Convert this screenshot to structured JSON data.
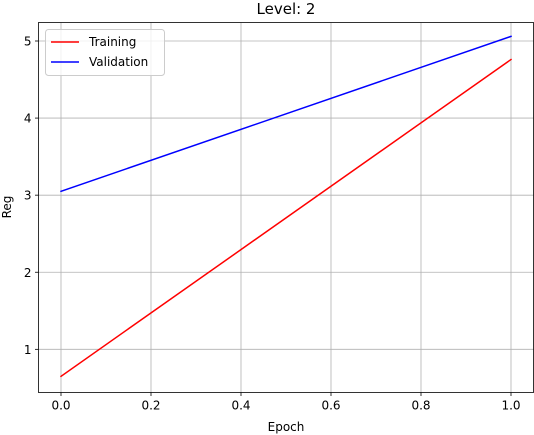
{
  "chart_data": {
    "type": "line",
    "title": "Level: 2",
    "xlabel": "Epoch",
    "ylabel": "Reg",
    "xlim": [
      -0.05,
      1.05
    ],
    "ylim": [
      0.44,
      5.24
    ],
    "xticks": [
      0.0,
      0.2,
      0.4,
      0.6,
      0.8,
      1.0
    ],
    "xtick_labels": [
      "0.0",
      "0.2",
      "0.4",
      "0.6",
      "0.8",
      "1.0"
    ],
    "yticks": [
      1,
      2,
      3,
      4,
      5
    ],
    "ytick_labels": [
      "1",
      "2",
      "3",
      "4",
      "5"
    ],
    "grid": true,
    "legend_position": "top-left",
    "series": [
      {
        "name": "Training",
        "color": "#ff0000",
        "x": [
          0.0,
          1.0
        ],
        "y": [
          0.65,
          4.76
        ]
      },
      {
        "name": "Validation",
        "color": "#0000ff",
        "x": [
          0.0,
          1.0
        ],
        "y": [
          3.05,
          5.06
        ]
      }
    ]
  }
}
